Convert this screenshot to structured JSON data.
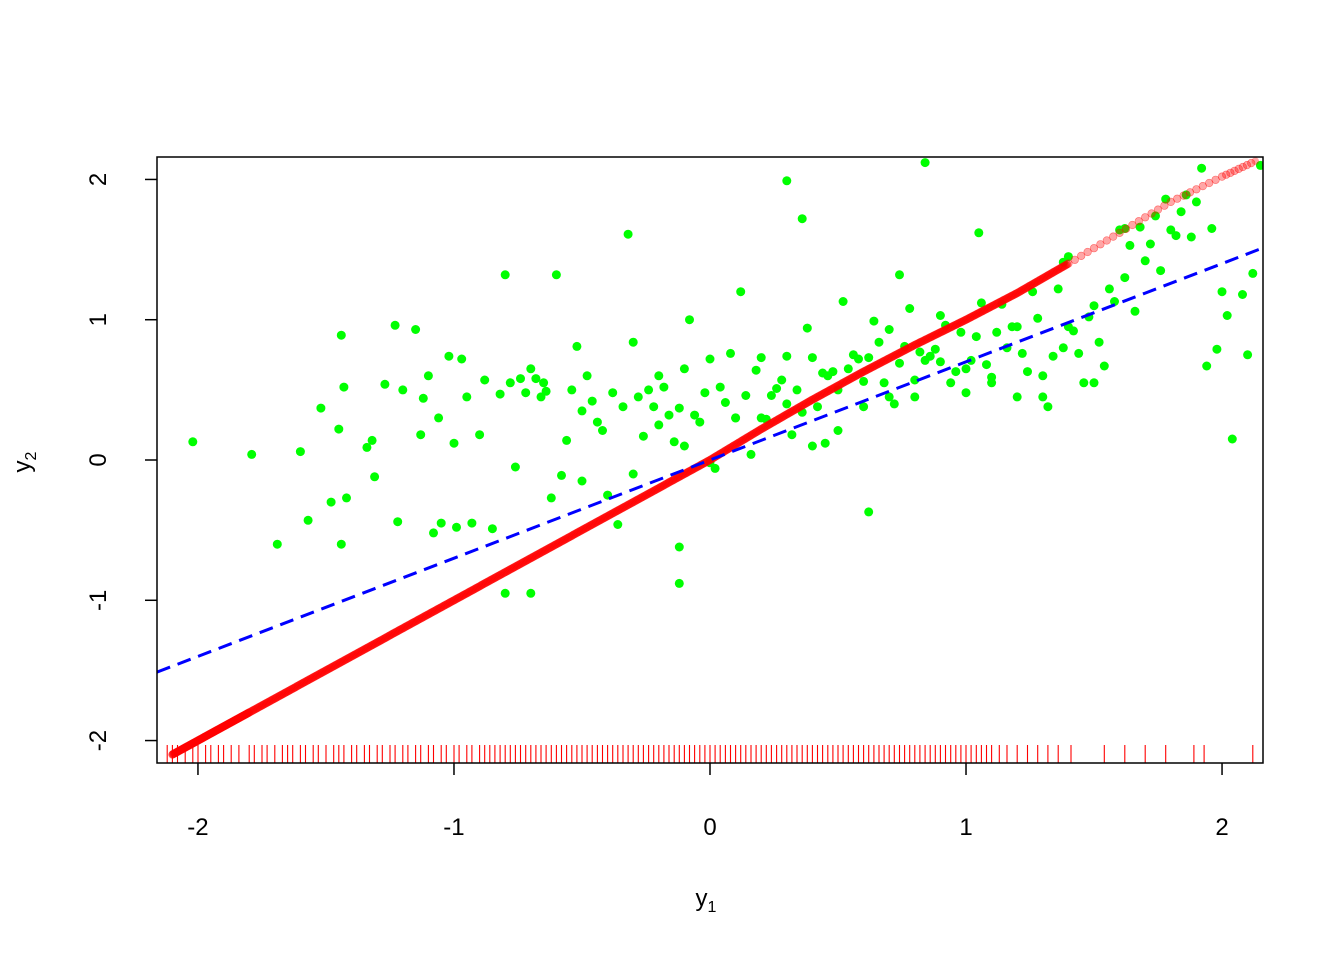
{
  "chart_data": {
    "type": "scatter",
    "xlabel": {
      "main": "y",
      "sub": "1"
    },
    "ylabel": {
      "main": "y",
      "sub": "2"
    },
    "xlim": [
      -2.16,
      2.16
    ],
    "ylim": [
      -2.16,
      2.16
    ],
    "xticks": [
      -2,
      -1,
      0,
      1,
      2
    ],
    "yticks": [
      -2,
      -1,
      0,
      1,
      2
    ],
    "xtick_labels": [
      "-2",
      "-1",
      "0",
      "1",
      "2"
    ],
    "ytick_labels": [
      "-2",
      "-1",
      "0",
      "1",
      "2"
    ],
    "grid": false,
    "legend": "none",
    "colors": {
      "scatter": "#00ff00",
      "curve": "#ff0000",
      "regression": "#0000ff",
      "rug": "#ff0000",
      "frame": "#000000"
    },
    "series": [
      {
        "kind": "scatter",
        "color": "#00ff00",
        "x": [
          -2.02,
          -1.79,
          -1.6,
          -1.57,
          -1.69,
          -1.52,
          -1.48,
          -1.44,
          -1.43,
          -1.42,
          -1.44,
          -1.45,
          -1.34,
          -1.32,
          -1.31,
          -1.27,
          -1.23,
          -1.22,
          -1.2,
          -1.15,
          -1.12,
          -1.1,
          -1.08,
          -1.06,
          -1.05,
          -1.02,
          -1.0,
          -0.99,
          -0.97,
          -0.95,
          -0.93,
          -0.9,
          -0.88,
          -0.85,
          -0.82,
          -0.8,
          -0.78,
          -0.76,
          -0.74,
          -0.72,
          -0.7,
          -0.68,
          -0.66,
          -0.64,
          -0.62,
          -0.6,
          -0.58,
          -0.56,
          -0.54,
          -0.52,
          -0.5,
          -0.48,
          -0.46,
          -0.44,
          -0.42,
          -0.4,
          -0.38,
          -0.36,
          -0.34,
          -0.32,
          -0.3,
          -0.28,
          -0.26,
          -0.24,
          -0.22,
          -0.2,
          -0.18,
          -0.16,
          -0.14,
          -0.12,
          -0.1,
          -0.08,
          -0.06,
          -0.04,
          -0.02,
          0.0,
          0.02,
          0.04,
          0.06,
          0.08,
          0.1,
          0.12,
          0.14,
          0.16,
          0.18,
          0.2,
          0.22,
          0.24,
          0.26,
          0.28,
          0.3,
          0.32,
          0.34,
          0.36,
          0.38,
          0.4,
          0.42,
          0.44,
          0.46,
          0.48,
          0.5,
          0.52,
          0.54,
          0.56,
          0.58,
          0.6,
          0.62,
          0.64,
          0.66,
          0.68,
          0.7,
          0.72,
          0.74,
          0.76,
          0.78,
          0.8,
          0.82,
          0.84,
          0.86,
          0.88,
          0.9,
          0.92,
          0.94,
          0.96,
          0.98,
          1.0,
          1.02,
          1.04,
          1.06,
          1.08,
          1.1,
          1.12,
          1.14,
          1.16,
          1.18,
          1.2,
          1.22,
          1.24,
          1.26,
          1.28,
          1.3,
          1.32,
          1.34,
          1.36,
          1.38,
          1.4,
          1.42,
          1.44,
          1.46,
          1.48,
          1.5,
          1.52,
          1.54,
          1.56,
          1.58,
          1.6,
          1.62,
          1.64,
          1.66,
          1.68,
          1.7,
          1.72,
          1.74,
          1.76,
          1.78,
          1.8,
          1.82,
          1.84,
          1.86,
          1.88,
          1.9,
          1.92,
          1.94,
          1.96,
          1.98,
          2.0,
          2.02,
          2.04,
          2.08,
          2.1,
          2.12,
          2.15,
          -0.7,
          -0.3,
          0.1,
          0.5,
          0.9,
          1.3,
          -0.5,
          -0.1,
          0.3,
          0.7,
          1.1,
          1.5,
          -0.2,
          0.2,
          0.6,
          1.0,
          1.4,
          0.0,
          0.4,
          0.8,
          1.2,
          -0.12,
          0.36,
          0.74,
          1.62,
          -0.8,
          -0.12,
          0.62,
          1.38,
          0.84,
          0.3,
          -0.65,
          -1.13,
          0.45,
          1.05
        ],
        "y": [
          0.13,
          0.04,
          0.06,
          -0.43,
          -0.6,
          0.37,
          -0.3,
          0.89,
          0.52,
          -0.27,
          -0.6,
          0.22,
          0.09,
          0.14,
          -0.12,
          0.54,
          0.96,
          -0.44,
          0.5,
          0.93,
          0.44,
          0.6,
          -0.52,
          0.3,
          -0.45,
          0.74,
          0.12,
          -0.48,
          0.72,
          0.45,
          -0.45,
          0.18,
          0.57,
          -0.49,
          0.47,
          1.32,
          0.55,
          -0.05,
          0.58,
          0.48,
          -0.95,
          0.58,
          0.45,
          0.49,
          -0.27,
          1.32,
          -0.11,
          0.14,
          0.5,
          0.81,
          0.35,
          0.6,
          0.42,
          0.27,
          0.21,
          -0.25,
          0.48,
          -0.46,
          0.38,
          1.61,
          0.84,
          0.45,
          0.17,
          0.5,
          0.38,
          0.6,
          0.52,
          0.32,
          0.13,
          0.37,
          0.65,
          1.0,
          0.32,
          0.27,
          0.48,
          0.72,
          -0.06,
          0.52,
          0.41,
          0.76,
          0.3,
          1.2,
          0.46,
          0.04,
          0.64,
          0.73,
          0.29,
          0.46,
          0.51,
          0.57,
          0.74,
          0.18,
          0.5,
          0.34,
          0.94,
          0.73,
          0.38,
          0.62,
          0.6,
          0.63,
          0.21,
          1.13,
          0.65,
          0.75,
          0.72,
          0.56,
          0.73,
          0.99,
          0.84,
          0.55,
          0.93,
          0.4,
          0.69,
          0.81,
          1.08,
          0.57,
          0.77,
          0.71,
          0.74,
          0.79,
          1.03,
          0.96,
          0.55,
          0.63,
          0.91,
          0.48,
          0.71,
          0.88,
          1.12,
          0.68,
          0.59,
          0.91,
          1.11,
          0.8,
          0.95,
          0.45,
          0.76,
          0.63,
          1.2,
          1.01,
          0.45,
          0.38,
          0.74,
          1.22,
          0.8,
          1.45,
          0.92,
          0.76,
          0.55,
          1.02,
          1.1,
          0.84,
          0.67,
          1.22,
          1.13,
          1.64,
          1.3,
          1.53,
          1.06,
          1.66,
          1.42,
          1.54,
          1.74,
          1.35,
          1.86,
          1.64,
          1.6,
          1.77,
          1.89,
          1.59,
          1.84,
          2.08,
          0.67,
          1.65,
          0.79,
          1.2,
          1.03,
          0.15,
          1.18,
          0.75,
          1.33,
          2.1,
          0.65,
          -0.1,
          0.3,
          0.5,
          0.7,
          0.6,
          -0.15,
          0.1,
          0.4,
          0.45,
          0.55,
          0.55,
          0.25,
          0.3,
          0.38,
          0.65,
          0.95,
          -0.02,
          0.1,
          0.45,
          0.95,
          -0.88,
          1.72,
          1.32,
          1.65,
          -0.95,
          -0.62,
          -0.37,
          1.41,
          2.12,
          1.99,
          0.55,
          0.18,
          0.12,
          1.62
        ]
      },
      {
        "kind": "curve",
        "color": "#ff0000",
        "x": [
          -2.1,
          -2.0,
          -1.9,
          -1.8,
          -1.6,
          -1.4,
          -1.2,
          -1.0,
          -0.8,
          -0.6,
          -0.4,
          -0.2,
          0.0,
          0.2,
          0.4,
          0.6,
          0.8,
          1.0,
          1.2,
          1.4,
          1.6,
          1.8,
          2.0,
          2.13
        ],
        "y": [
          -2.1,
          -2.0,
          -1.9,
          -1.8,
          -1.6,
          -1.4,
          -1.2,
          -1.0,
          -0.8,
          -0.6,
          -0.4,
          -0.2,
          0.0,
          0.22,
          0.43,
          0.63,
          0.82,
          1.0,
          1.19,
          1.4,
          1.62,
          1.84,
          2.02,
          2.13
        ]
      },
      {
        "kind": "regression-line",
        "color": "#0000ff",
        "dash": true,
        "intercept": 0.0,
        "slope": 0.7
      },
      {
        "kind": "rug",
        "color": "#ff0000",
        "x": [
          -2.12,
          -2.1,
          -2.08,
          -2.05,
          -2.02,
          -2.0,
          -1.97,
          -1.95,
          -1.92,
          -1.9,
          -1.87,
          -1.84,
          -1.8,
          -1.78,
          -1.75,
          -1.73,
          -1.7,
          -1.67,
          -1.65,
          -1.63,
          -1.6,
          -1.58,
          -1.55,
          -1.53,
          -1.5,
          -1.47,
          -1.45,
          -1.43,
          -1.4,
          -1.38,
          -1.35,
          -1.33,
          -1.3,
          -1.28,
          -1.25,
          -1.23,
          -1.2,
          -1.18,
          -1.15,
          -1.13,
          -1.1,
          -1.08,
          -1.05,
          -1.03,
          -1.0,
          -0.98,
          -0.95,
          -0.93,
          -0.9,
          -0.88,
          -0.86,
          -0.84,
          -0.82,
          -0.8,
          -0.78,
          -0.76,
          -0.74,
          -0.72,
          -0.7,
          -0.68,
          -0.66,
          -0.64,
          -0.62,
          -0.6,
          -0.58,
          -0.56,
          -0.54,
          -0.52,
          -0.5,
          -0.48,
          -0.46,
          -0.44,
          -0.42,
          -0.4,
          -0.38,
          -0.36,
          -0.34,
          -0.32,
          -0.3,
          -0.28,
          -0.26,
          -0.24,
          -0.22,
          -0.2,
          -0.18,
          -0.16,
          -0.14,
          -0.12,
          -0.1,
          -0.08,
          -0.06,
          -0.04,
          -0.02,
          0.0,
          0.02,
          0.04,
          0.06,
          0.08,
          0.1,
          0.12,
          0.14,
          0.16,
          0.18,
          0.2,
          0.22,
          0.24,
          0.26,
          0.28,
          0.3,
          0.32,
          0.34,
          0.36,
          0.38,
          0.4,
          0.42,
          0.44,
          0.46,
          0.48,
          0.5,
          0.52,
          0.54,
          0.56,
          0.58,
          0.6,
          0.62,
          0.64,
          0.66,
          0.68,
          0.7,
          0.72,
          0.74,
          0.76,
          0.78,
          0.8,
          0.82,
          0.84,
          0.86,
          0.88,
          0.9,
          0.92,
          0.94,
          0.96,
          0.98,
          1.0,
          1.02,
          1.04,
          1.06,
          1.08,
          1.1,
          1.13,
          1.16,
          1.2,
          1.24,
          1.28,
          1.32,
          1.36,
          1.41,
          1.54,
          1.62,
          1.7,
          1.78,
          1.89,
          1.93,
          2.12
        ]
      }
    ]
  }
}
